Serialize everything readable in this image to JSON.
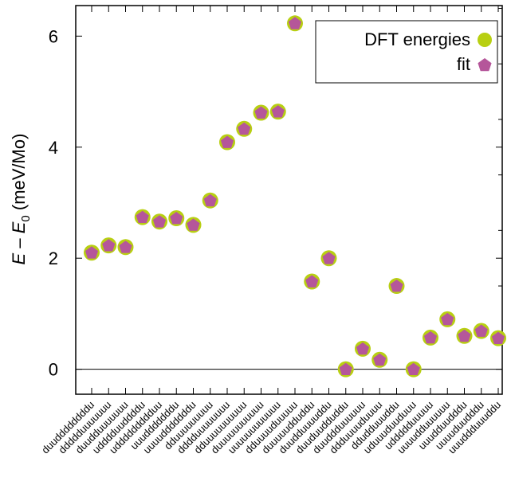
{
  "chart_data": {
    "type": "scatter",
    "ylabel": {
      "E": "E",
      "dash": " – ",
      "E0": "E",
      "sub": "0",
      "unit": " (meV/Mo)"
    },
    "ylim": [
      -0.45,
      6.55
    ],
    "yticks": [
      0,
      2,
      4,
      6
    ],
    "grid": false,
    "zero_line": true,
    "legend_position": "top-right",
    "categories": [
      "duuddddddddu",
      "ddddduuuuuuu",
      "duudduuuuuuu",
      "udddduuddddu",
      "uddddddddduu",
      "uuudddddddu",
      "uuuudddddddu",
      "dduuuuuuuuu",
      "dddduuuuuuuu",
      "dduuuuuuuuuu",
      "duuuuuuuuuuu",
      "uuuuuuuuuuuu",
      "dduuuuduuuuu",
      "duuuuudduddu",
      "duudduuuuddu",
      "duuduudduddu",
      "duuddduuuuuu",
      "ddduuuuduuuu",
      "ddudduuuddu",
      "uduuuduuduuu",
      "uddddduuuuu",
      "uuuudduuuuuu",
      "uuudduudddu",
      "uuuuduudddu",
      "uuuddduuuddu"
    ],
    "series": [
      {
        "name": "DFT energies",
        "color": "#b8cf12",
        "marker": "circle",
        "values": [
          2.1,
          2.23,
          2.2,
          2.74,
          2.66,
          2.72,
          2.6,
          3.04,
          4.09,
          4.33,
          4.62,
          4.64,
          6.23,
          1.58,
          2.0,
          0.0,
          0.37,
          0.17,
          1.5,
          0.0,
          0.57,
          0.9,
          0.6,
          0.69,
          0.56
        ]
      },
      {
        "name": "fit",
        "color": "#b5569a",
        "marker": "pentagon",
        "values": [
          2.1,
          2.23,
          2.2,
          2.74,
          2.66,
          2.72,
          2.6,
          3.04,
          4.09,
          4.33,
          4.62,
          4.64,
          6.23,
          1.58,
          2.0,
          0.0,
          0.37,
          0.17,
          1.5,
          0.0,
          0.57,
          0.9,
          0.6,
          0.69,
          0.56
        ]
      }
    ]
  }
}
